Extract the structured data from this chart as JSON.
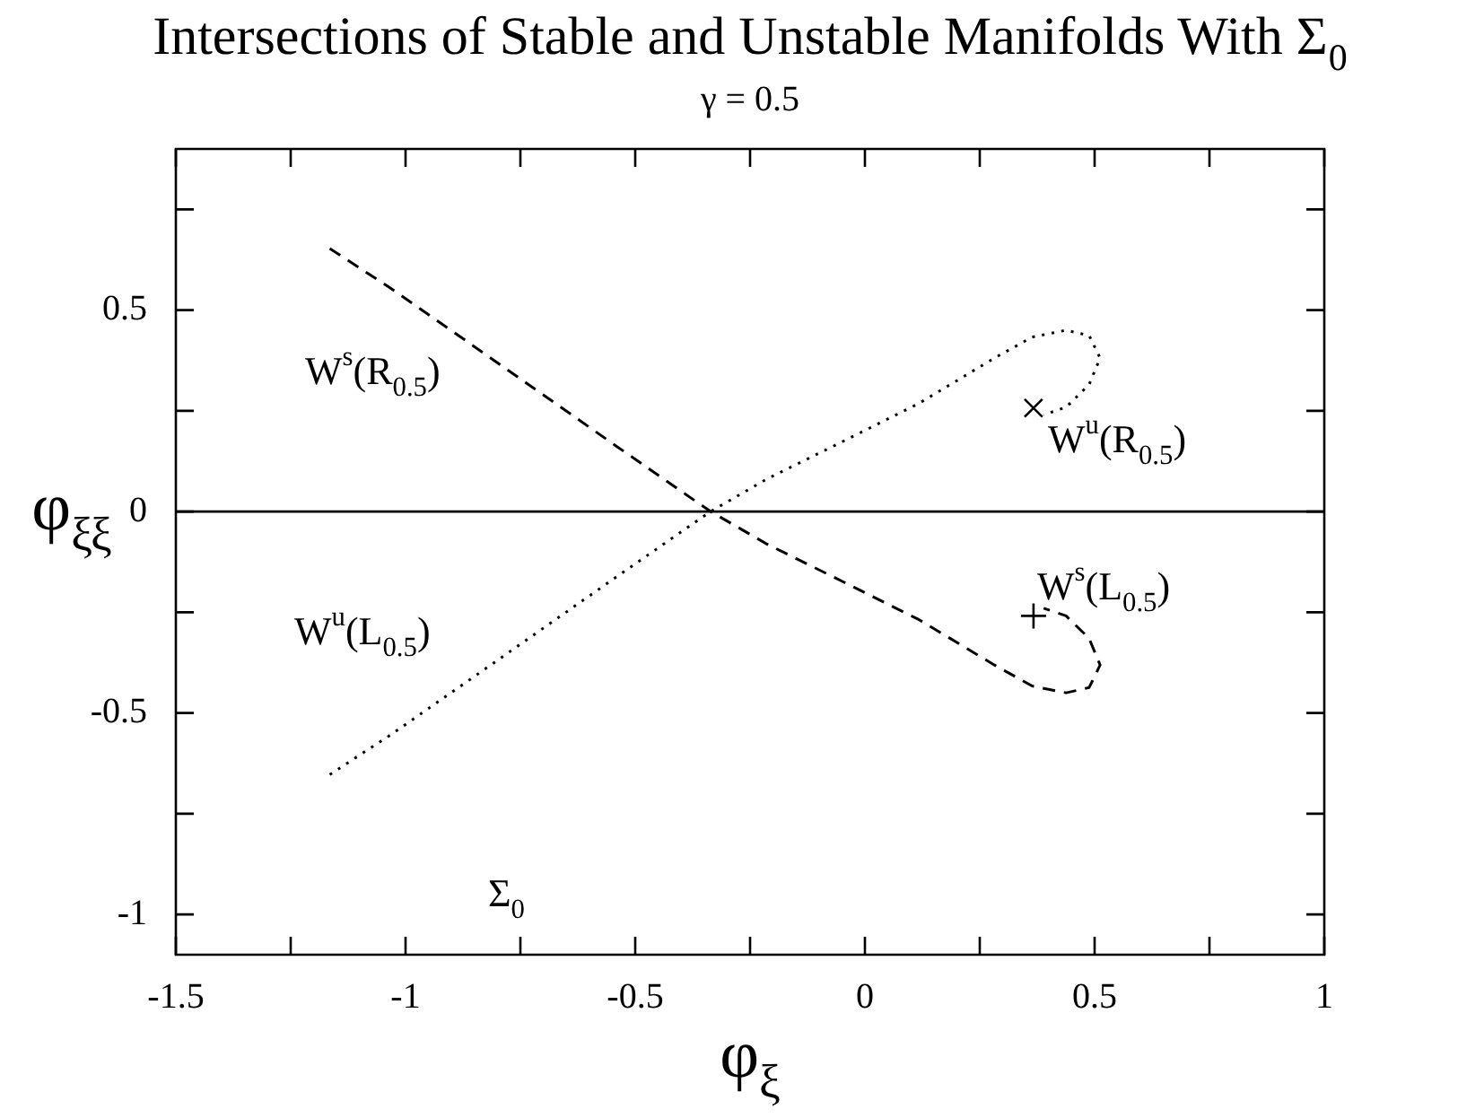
{
  "chart_data": {
    "type": "line",
    "title": "Intersections of Stable and Unstable Manifolds With Σ$_{0}$",
    "subtitle": "γ = 0.5",
    "xlabel": "φ$_{ξ}$",
    "ylabel": "φ$_{ξξ}$",
    "xlim": [
      -1.5,
      1
    ],
    "ylim": [
      -1.1,
      0.9
    ],
    "xticks": [
      -1.5,
      {
        "value": -1.25,
        "label": null
      },
      -1,
      {
        "value": -0.75,
        "label": null
      },
      -0.5,
      {
        "value": -0.25,
        "label": null
      },
      0,
      {
        "value": 0.25,
        "label": null
      },
      0.5,
      {
        "value": 0.75,
        "label": null
      },
      1
    ],
    "yticks": [
      {
        "value": 0.75,
        "label": null
      },
      0.5,
      {
        "value": 0.25,
        "label": null
      },
      0,
      {
        "value": -0.25,
        "label": null
      },
      -0.5,
      {
        "value": -0.75,
        "label": null
      },
      -1
    ],
    "grid": false,
    "legend": false,
    "marker": "none",
    "series": [
      {
        "color": "#000000",
        "line_style": "dashed",
        "x": [
          -1.165,
          -1.036,
          -0.871,
          -0.707,
          -0.542,
          -0.336,
          -0.213,
          -0.048,
          0.117,
          0.282,
          0.364,
          0.438,
          0.488,
          0.512,
          0.488,
          0.438,
          0.389
        ],
        "values": [
          0.653,
          0.557,
          0.426,
          0.295,
          0.163,
          0,
          -0.081,
          -0.174,
          -0.268,
          -0.381,
          -0.433,
          -0.45,
          -0.437,
          -0.381,
          -0.315,
          -0.259,
          -0.24
        ]
      },
      {
        "color": "#000000",
        "line_style": "dotted",
        "x": [
          -1.165,
          -1.036,
          -0.871,
          -0.707,
          -0.542,
          -0.336,
          -0.213,
          -0.048,
          0.117,
          0.282,
          0.364,
          0.438,
          0.488,
          0.512,
          0.488,
          0.438,
          0.389
        ],
        "values": [
          -0.653,
          -0.557,
          -0.426,
          -0.295,
          -0.163,
          0,
          0.081,
          0.174,
          0.268,
          0.381,
          0.433,
          0.45,
          0.437,
          0.381,
          0.315,
          0.259,
          0.24
        ]
      },
      {
        "type": "scatter",
        "color": "#000000",
        "marker": "cross",
        "x": [
          0.367
        ],
        "values": [
          0.257
        ]
      },
      {
        "type": "scatter",
        "color": "#000000",
        "marker": "plus",
        "x": [
          0.367
        ],
        "values": [
          -0.259
        ]
      }
    ],
    "ref_lines": [
      {
        "axis": "y",
        "value": 0,
        "color": "#000000",
        "line_style": "solid"
      }
    ],
    "annotations": [
      "W$^{s}$(R$_{0.5}$)",
      "W$^{u}$(R$_{0.5}$)",
      "W$^{s}$(L$_{0.5}$)",
      "W$^{u}$(L$_{0.5}$)",
      "Σ$_{0}$"
    ]
  }
}
